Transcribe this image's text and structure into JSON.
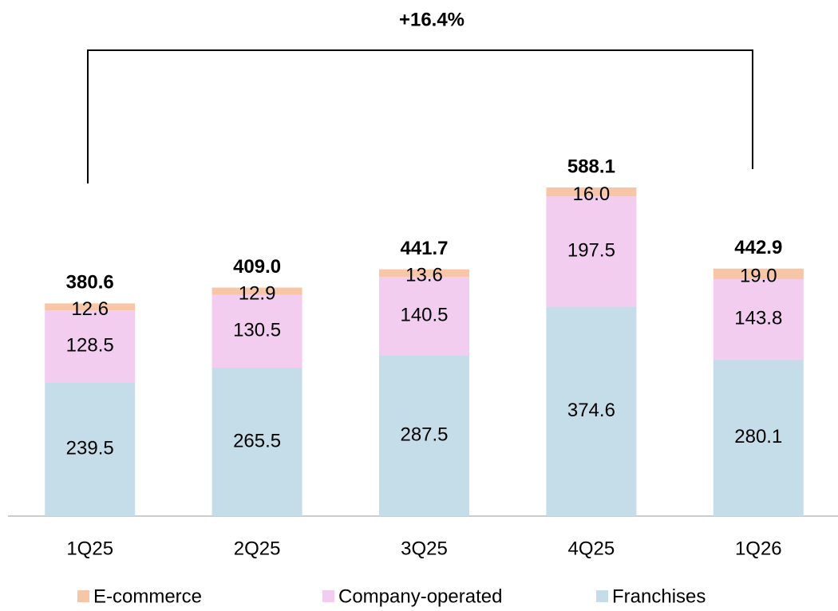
{
  "chart_data": {
    "type": "stacked_bar",
    "annotation": "+16.4%",
    "categories": [
      "1Q25",
      "2Q25",
      "3Q25",
      "4Q25",
      "1Q26"
    ],
    "series": [
      {
        "name": "E-commerce",
        "color": "#f7c6a6",
        "values": [
          12.6,
          12.9,
          13.6,
          16.0,
          19.0
        ],
        "value_labels": [
          "12.6",
          "12.9",
          "13.6",
          "16.0",
          "19.0"
        ]
      },
      {
        "name": "Company-operated",
        "color": "#f2cdf0",
        "values": [
          128.5,
          130.5,
          140.5,
          197.5,
          143.8
        ],
        "value_labels": [
          "128.5",
          "130.5",
          "140.5",
          "197.5",
          "143.8"
        ]
      },
      {
        "name": "Franchises",
        "color": "#c5dce9",
        "values": [
          239.5,
          265.5,
          287.5,
          374.6,
          280.1
        ],
        "value_labels": [
          "239.5",
          "265.5",
          "287.5",
          "374.6",
          "280.1"
        ]
      }
    ],
    "totals": [
      380.6,
      409.0,
      441.7,
      588.1,
      442.9
    ],
    "total_labels": [
      "380.6",
      "409.0",
      "441.7",
      "588.1",
      "442.9"
    ]
  }
}
